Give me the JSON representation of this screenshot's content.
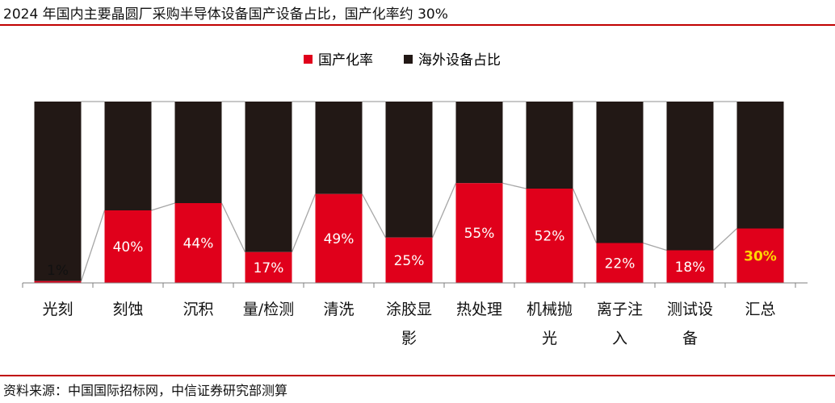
{
  "title": "2024 年国内主要晶圆厂采购半导体设备国产设备占比，国产化率约 30%",
  "source": "资料来源：中国国际招标网，中信证券研究部测算",
  "colors": {
    "domestic": "#e0001b",
    "foreign": "#221815",
    "connector": "#a6a6a6",
    "highlight_label": "#ffd700",
    "accent_rule": "#c00000"
  },
  "chart_data": {
    "type": "bar",
    "stacked": true,
    "percent_stacked": true,
    "ylim": [
      0,
      100
    ],
    "grid": false,
    "legend_position": "top-center",
    "categories": [
      "光刻",
      "刻蚀",
      "沉积",
      "量/检测",
      "清洗",
      "涂胶显影",
      "热处理",
      "机械抛光",
      "离子注入",
      "测试设备",
      "汇总"
    ],
    "category_lines": [
      [
        "光刻"
      ],
      [
        "刻蚀"
      ],
      [
        "沉积"
      ],
      [
        "量/检测"
      ],
      [
        "清洗"
      ],
      [
        "涂胶显",
        "影"
      ],
      [
        "热处理"
      ],
      [
        "机械抛",
        "光"
      ],
      [
        "离子注",
        "入"
      ],
      [
        "测试设",
        "备"
      ],
      [
        "汇总"
      ]
    ],
    "series": [
      {
        "name": "国产化率",
        "values": [
          1,
          40,
          44,
          17,
          49,
          25,
          55,
          52,
          22,
          18,
          30
        ]
      },
      {
        "name": "海外设备占比",
        "values": [
          99,
          60,
          56,
          83,
          51,
          75,
          45,
          48,
          78,
          82,
          70
        ]
      }
    ],
    "data_labels": [
      "1%",
      "40%",
      "44%",
      "17%",
      "49%",
      "25%",
      "55%",
      "52%",
      "22%",
      "18%",
      "30%"
    ],
    "highlight_index": 10
  }
}
